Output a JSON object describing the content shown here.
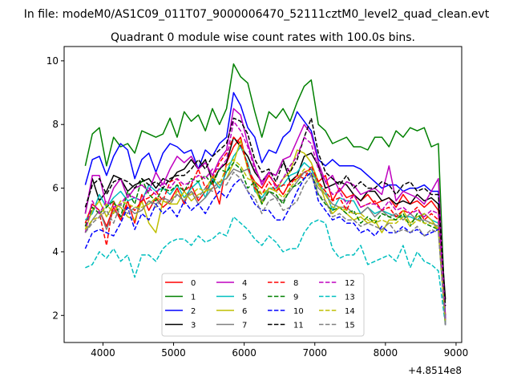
{
  "figure": {
    "suptitle": "In file: modeM0/AS1C09_011T07_9000006470_52111cztM0_level2_quad_clean.evt",
    "background": "#ffffff"
  },
  "chart_data": {
    "type": "line",
    "title": "Quadrant 0 module wise count rates with 100.0s bins.",
    "xlabel": "",
    "ylabel": "",
    "x_offset_label": "+4.8514e8",
    "x_offset": 485140000,
    "xlim": [
      3450,
      9080
    ],
    "ylim": [
      1.15,
      10.45
    ],
    "x_ticks": [
      4000,
      5000,
      6000,
      7000,
      8000,
      9000
    ],
    "x_tick_labels": [
      "4000",
      "5000",
      "6000",
      "7000",
      "8000",
      "9000"
    ],
    "y_ticks": [
      2,
      4,
      6,
      8,
      10
    ],
    "y_tick_labels": [
      "2",
      "4",
      "6",
      "8",
      "10"
    ],
    "grid": false,
    "legend_position": "lower-center",
    "legend_columns": 4,
    "x": [
      3750,
      3850,
      3950,
      4050,
      4150,
      4250,
      4350,
      4450,
      4550,
      4650,
      4750,
      4850,
      4950,
      5050,
      5150,
      5250,
      5350,
      5450,
      5550,
      5650,
      5750,
      5850,
      5950,
      6050,
      6150,
      6250,
      6350,
      6450,
      6550,
      6650,
      6750,
      6850,
      6950,
      7050,
      7150,
      7250,
      7350,
      7450,
      7550,
      7650,
      7750,
      7850,
      7950,
      8050,
      8150,
      8250,
      8350,
      8450,
      8550,
      8650,
      8750,
      8850
    ],
    "series": [
      {
        "name": "0",
        "color": "#ff0000",
        "dash": "solid",
        "values": [
          4.9,
          5.5,
          5.3,
          4.8,
          5.4,
          5.0,
          5.6,
          4.9,
          5.8,
          5.3,
          5.7,
          5.4,
          5.6,
          6.0,
          5.5,
          6.1,
          5.6,
          5.9,
          6.2,
          5.5,
          6.8,
          7.3,
          7.6,
          6.6,
          6.2,
          6.0,
          6.4,
          6.1,
          5.8,
          6.2,
          6.3,
          6.5,
          6.6,
          6.2,
          6.4,
          5.6,
          6.0,
          5.7,
          5.8,
          5.6,
          5.8,
          5.5,
          5.6,
          5.7,
          5.4,
          5.8,
          5.5,
          5.6,
          5.4,
          5.6,
          5.3,
          2.0
        ]
      },
      {
        "name": "1",
        "color": "#008000",
        "dash": "solid",
        "values": [
          6.7,
          7.7,
          7.9,
          6.7,
          7.6,
          7.3,
          7.4,
          7.1,
          7.8,
          7.7,
          7.6,
          7.7,
          8.2,
          7.6,
          8.4,
          8.1,
          8.3,
          7.8,
          8.5,
          8.0,
          8.5,
          9.9,
          9.5,
          9.3,
          8.4,
          7.6,
          8.4,
          8.2,
          8.5,
          8.1,
          8.7,
          9.2,
          9.4,
          8.0,
          7.8,
          7.4,
          7.5,
          7.6,
          7.3,
          7.3,
          7.2,
          7.6,
          7.6,
          7.3,
          7.8,
          7.6,
          7.9,
          7.8,
          7.9,
          7.3,
          7.4,
          1.8
        ]
      },
      {
        "name": "2",
        "color": "#0000ff",
        "dash": "solid",
        "values": [
          6.1,
          6.9,
          7.0,
          6.4,
          7.0,
          7.4,
          7.2,
          6.3,
          6.9,
          7.1,
          6.5,
          7.1,
          7.4,
          7.3,
          7.1,
          7.2,
          6.6,
          7.2,
          7.0,
          7.4,
          7.6,
          9.0,
          8.6,
          7.9,
          7.6,
          6.8,
          7.2,
          7.1,
          7.6,
          7.8,
          8.4,
          8.1,
          7.8,
          6.9,
          6.7,
          6.9,
          6.7,
          6.7,
          6.7,
          6.6,
          6.4,
          6.2,
          6.0,
          6.1,
          6.1,
          5.9,
          6.0,
          6.0,
          6.1,
          5.9,
          5.9,
          1.9
        ]
      },
      {
        "name": "3",
        "color": "#000000",
        "dash": "solid",
        "values": [
          5.2,
          6.3,
          5.6,
          5.9,
          6.4,
          6.3,
          5.9,
          6.1,
          6.2,
          6.3,
          6.0,
          6.3,
          6.2,
          6.5,
          6.6,
          6.9,
          6.6,
          6.9,
          6.2,
          6.6,
          6.8,
          7.6,
          7.3,
          7.0,
          6.5,
          6.2,
          6.5,
          6.4,
          6.9,
          6.2,
          6.4,
          7.0,
          7.1,
          6.7,
          6.0,
          6.1,
          6.2,
          6.1,
          5.8,
          5.6,
          5.9,
          5.9,
          5.6,
          5.7,
          5.5,
          5.6,
          5.5,
          5.8,
          5.6,
          5.7,
          5.5,
          2.5
        ]
      },
      {
        "name": "4",
        "color": "#bf00bf",
        "dash": "solid",
        "values": [
          5.2,
          6.4,
          6.4,
          5.4,
          6.0,
          6.3,
          5.7,
          6.0,
          6.1,
          5.9,
          6.5,
          6.1,
          6.6,
          7.0,
          6.8,
          7.0,
          6.6,
          6.8,
          6.4,
          6.9,
          7.2,
          8.5,
          8.3,
          7.4,
          6.7,
          6.1,
          6.5,
          6.4,
          6.9,
          7.0,
          7.5,
          8.0,
          7.7,
          6.8,
          6.2,
          6.4,
          5.9,
          6.2,
          6.1,
          5.8,
          5.9,
          6.0,
          5.8,
          6.7,
          5.6,
          5.9,
          5.8,
          5.7,
          5.5,
          5.9,
          6.3,
          1.8
        ]
      },
      {
        "name": "5",
        "color": "#00bfbf",
        "dash": "solid",
        "values": [
          5.0,
          5.2,
          5.8,
          5.4,
          5.7,
          5.9,
          5.6,
          5.7,
          5.6,
          6.1,
          5.9,
          6.0,
          5.8,
          6.1,
          5.7,
          6.0,
          6.2,
          5.7,
          6.3,
          6.0,
          6.5,
          7.0,
          7.3,
          6.8,
          5.9,
          5.7,
          6.0,
          6.0,
          6.1,
          6.4,
          6.5,
          6.8,
          6.6,
          6.1,
          5.9,
          5.3,
          5.7,
          5.6,
          5.6,
          5.2,
          5.4,
          5.2,
          5.3,
          5.2,
          5.1,
          5.1,
          5.1,
          5.0,
          5.2,
          5.0,
          4.9,
          1.8
        ]
      },
      {
        "name": "6",
        "color": "#bfbf00",
        "dash": "solid",
        "values": [
          4.7,
          5.3,
          5.6,
          5.1,
          5.5,
          5.4,
          5.1,
          5.0,
          5.6,
          4.9,
          4.6,
          5.6,
          5.5,
          5.5,
          5.9,
          5.6,
          5.8,
          5.9,
          6.0,
          6.2,
          6.3,
          6.8,
          7.5,
          6.6,
          6.0,
          5.5,
          6.0,
          5.9,
          6.3,
          6.5,
          7.2,
          7.1,
          6.8,
          6.2,
          5.6,
          5.2,
          5.4,
          5.2,
          5.0,
          5.1,
          4.9,
          5.0,
          4.6,
          5.0,
          5.0,
          5.3,
          4.9,
          5.1,
          5.2,
          5.0,
          4.7,
          1.7
        ]
      },
      {
        "name": "7",
        "color": "#808080",
        "dash": "solid",
        "values": [
          4.6,
          5.0,
          5.3,
          4.7,
          5.3,
          5.1,
          5.4,
          5.2,
          5.3,
          5.6,
          5.5,
          5.7,
          5.6,
          5.8,
          5.6,
          5.9,
          5.5,
          5.7,
          6.0,
          6.2,
          6.3,
          6.6,
          6.5,
          6.6,
          6.1,
          5.6,
          5.9,
          5.7,
          5.6,
          5.9,
          6.2,
          6.5,
          6.4,
          6.0,
          5.8,
          5.5,
          5.4,
          5.4,
          5.2,
          5.2,
          5.4,
          5.1,
          5.3,
          5.1,
          5.2,
          5.0,
          5.2,
          5.0,
          5.0,
          4.9,
          4.8,
          1.7
        ]
      },
      {
        "name": "8",
        "color": "#ff0000",
        "dash": "dashed",
        "values": [
          4.8,
          5.4,
          5.2,
          4.2,
          5.6,
          5.0,
          5.5,
          5.3,
          5.6,
          5.7,
          5.9,
          5.6,
          6.2,
          6.3,
          5.9,
          6.1,
          6.6,
          6.0,
          6.3,
          6.8,
          7.1,
          7.6,
          7.4,
          6.7,
          6.0,
          5.8,
          6.2,
          5.9,
          6.1,
          6.1,
          6.4,
          6.3,
          6.7,
          6.2,
          5.9,
          5.6,
          5.7,
          5.3,
          5.8,
          5.4,
          5.5,
          5.6,
          5.3,
          5.4,
          5.1,
          5.3,
          5.2,
          5.4,
          5.0,
          5.2,
          5.0,
          1.8
        ]
      },
      {
        "name": "9",
        "color": "#008000",
        "dash": "dashed",
        "values": [
          4.8,
          5.4,
          5.2,
          5.4,
          5.6,
          5.1,
          5.9,
          5.5,
          6.3,
          5.8,
          5.6,
          6.0,
          5.9,
          6.1,
          5.9,
          6.3,
          6.2,
          6.4,
          6.1,
          6.6,
          6.5,
          6.8,
          6.6,
          6.0,
          6.2,
          5.5,
          5.9,
          5.8,
          5.5,
          6.0,
          6.1,
          6.3,
          6.5,
          5.8,
          5.5,
          5.3,
          5.4,
          5.2,
          5.3,
          4.9,
          5.1,
          4.9,
          5.2,
          5.1,
          5.0,
          5.2,
          4.8,
          5.2,
          4.9,
          4.8,
          4.7,
          1.7
        ]
      },
      {
        "name": "10",
        "color": "#0000ff",
        "dash": "dashed",
        "values": [
          4.1,
          4.6,
          4.7,
          4.6,
          4.5,
          4.9,
          5.4,
          4.7,
          5.2,
          5.0,
          5.5,
          5.2,
          5.4,
          5.1,
          5.6,
          5.3,
          5.5,
          5.2,
          5.6,
          5.9,
          5.7,
          6.1,
          6.3,
          5.9,
          5.5,
          5.3,
          5.3,
          5.0,
          5.0,
          5.4,
          5.9,
          6.3,
          6.5,
          5.6,
          5.3,
          5.0,
          5.1,
          4.9,
          4.9,
          4.6,
          4.7,
          4.5,
          4.8,
          4.6,
          4.6,
          4.8,
          4.6,
          4.7,
          4.5,
          4.6,
          4.7,
          1.7
        ]
      },
      {
        "name": "11",
        "color": "#000000",
        "dash": "dashed",
        "values": [
          5.4,
          6.1,
          6.3,
          5.8,
          6.2,
          6.3,
          6.2,
          6.0,
          6.3,
          6.1,
          6.2,
          6.0,
          6.3,
          6.4,
          6.4,
          6.6,
          6.9,
          6.6,
          7.0,
          7.2,
          7.4,
          8.2,
          8.1,
          7.7,
          6.9,
          6.5,
          6.6,
          6.2,
          6.8,
          6.5,
          6.9,
          7.6,
          8.2,
          7.1,
          6.5,
          6.3,
          6.1,
          6.4,
          6.0,
          6.2,
          6.0,
          6.0,
          6.2,
          6.1,
          5.8,
          6.1,
          6.2,
          5.9,
          6.0,
          5.8,
          5.8,
          2.3
        ]
      },
      {
        "name": "12",
        "color": "#bf00bf",
        "dash": "dashed",
        "values": [
          4.6,
          5.6,
          5.2,
          5.6,
          5.4,
          5.5,
          5.8,
          5.7,
          5.6,
          6.0,
          5.8,
          6.2,
          6.0,
          6.3,
          6.1,
          6.2,
          6.4,
          6.3,
          6.6,
          6.6,
          6.9,
          8.1,
          7.8,
          7.3,
          6.6,
          6.2,
          6.5,
          6.0,
          6.3,
          6.7,
          7.0,
          7.6,
          7.4,
          6.6,
          6.2,
          5.8,
          5.9,
          5.5,
          5.8,
          5.4,
          5.5,
          5.5,
          5.3,
          5.6,
          5.3,
          5.4,
          5.2,
          5.3,
          5.1,
          5.3,
          5.2,
          1.8
        ]
      },
      {
        "name": "13",
        "color": "#00bfbf",
        "dash": "dashed",
        "values": [
          3.5,
          3.6,
          4.0,
          3.8,
          4.1,
          3.7,
          3.9,
          3.2,
          3.9,
          3.9,
          3.7,
          4.1,
          4.3,
          4.4,
          4.4,
          4.2,
          4.5,
          4.3,
          4.4,
          4.6,
          4.5,
          5.1,
          4.9,
          4.7,
          4.4,
          4.2,
          4.5,
          4.3,
          4.0,
          4.1,
          4.1,
          4.6,
          4.9,
          5.0,
          4.9,
          4.1,
          3.8,
          3.9,
          3.9,
          4.2,
          3.6,
          3.7,
          3.8,
          3.9,
          3.7,
          4.2,
          3.5,
          4.0,
          3.7,
          3.6,
          3.4,
          1.7
        ]
      },
      {
        "name": "14",
        "color": "#bfbf00",
        "dash": "dashed",
        "values": [
          4.7,
          5.0,
          5.1,
          5.5,
          5.2,
          5.6,
          5.5,
          5.4,
          5.4,
          5.5,
          5.7,
          5.6,
          5.5,
          5.9,
          5.7,
          5.8,
          6.0,
          5.9,
          6.4,
          6.1,
          6.7,
          6.9,
          6.7,
          6.3,
          6.2,
          5.8,
          6.0,
          5.9,
          5.7,
          6.0,
          6.3,
          6.6,
          6.5,
          6.1,
          5.8,
          5.4,
          5.4,
          5.3,
          5.2,
          5.2,
          5.0,
          4.9,
          5.0,
          4.9,
          4.9,
          5.1,
          4.8,
          5.0,
          4.9,
          4.9,
          4.7,
          1.7
        ]
      },
      {
        "name": "15",
        "color": "#808080",
        "dash": "dashed",
        "values": [
          4.6,
          4.9,
          5.1,
          5.3,
          4.9,
          5.5,
          5.2,
          5.4,
          5.3,
          5.6,
          5.4,
          5.7,
          5.5,
          5.8,
          5.6,
          5.9,
          5.7,
          6.0,
          5.9,
          6.1,
          6.1,
          6.5,
          6.3,
          5.9,
          5.7,
          5.2,
          5.6,
          5.7,
          5.3,
          5.4,
          5.6,
          6.1,
          6.4,
          5.8,
          5.6,
          5.1,
          5.2,
          5.0,
          5.0,
          4.8,
          4.9,
          4.8,
          4.7,
          4.9,
          4.6,
          4.7,
          4.6,
          4.8,
          4.5,
          4.7,
          4.6,
          1.7
        ]
      }
    ]
  }
}
